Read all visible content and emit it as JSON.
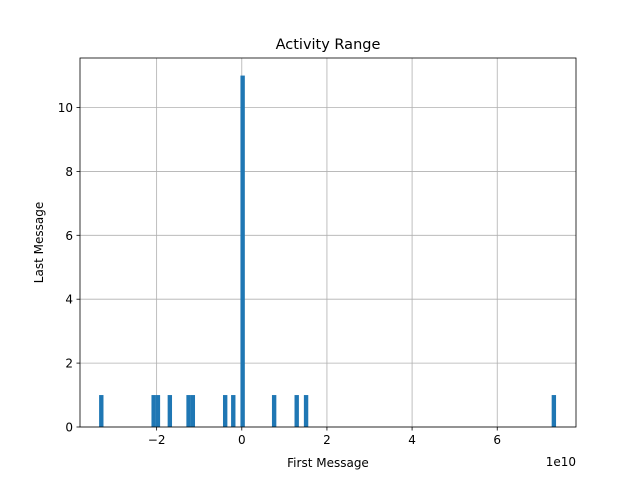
{
  "chart_data": {
    "type": "bar",
    "title": "Activity Range",
    "xlabel": "First Message",
    "ylabel": "Last Message",
    "x_offset_label": "1e10",
    "xlim": [
      -3.8,
      7.85
    ],
    "ylim": [
      0,
      11.55
    ],
    "grid": true,
    "bar_color": "#1f77b4",
    "bar_width": 0.103,
    "xticks": [
      {
        "value": -2,
        "label": "−2"
      },
      {
        "value": 0,
        "label": "0"
      },
      {
        "value": 2,
        "label": "2"
      },
      {
        "value": 4,
        "label": "4"
      },
      {
        "value": 6,
        "label": "6"
      }
    ],
    "yticks": [
      {
        "value": 0,
        "label": "0"
      },
      {
        "value": 2,
        "label": "2"
      },
      {
        "value": 4,
        "label": "4"
      },
      {
        "value": 6,
        "label": "6"
      },
      {
        "value": 8,
        "label": "8"
      },
      {
        "value": 10,
        "label": "10"
      }
    ],
    "bars": [
      {
        "x": -3.3,
        "value": 1
      },
      {
        "x": -2.07,
        "value": 1
      },
      {
        "x": -1.97,
        "value": 1
      },
      {
        "x": -1.69,
        "value": 1
      },
      {
        "x": -1.25,
        "value": 1
      },
      {
        "x": -1.15,
        "value": 1
      },
      {
        "x": -0.39,
        "value": 1
      },
      {
        "x": -0.2,
        "value": 1
      },
      {
        "x": 0.02,
        "value": 11
      },
      {
        "x": 0.76,
        "value": 1
      },
      {
        "x": 1.29,
        "value": 1
      },
      {
        "x": 1.51,
        "value": 1
      },
      {
        "x": 7.33,
        "value": 1
      }
    ]
  }
}
